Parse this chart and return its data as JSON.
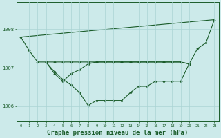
{
  "background_color": "#cceaea",
  "grid_color": "#aad4d4",
  "line_color": "#1a5c2a",
  "marker_color": "#1a5c2a",
  "xlabel": "Graphe pression niveau de la mer (hPa)",
  "xlabel_fontsize": 6.5,
  "ylabel_ticks": [
    1006,
    1007,
    1008
  ],
  "xlim": [
    -0.5,
    23.5
  ],
  "ylim": [
    1005.6,
    1008.7
  ],
  "x": [
    0,
    1,
    2,
    3,
    4,
    5,
    6,
    7,
    8,
    9,
    10,
    11,
    12,
    13,
    14,
    15,
    16,
    17,
    18,
    19,
    20,
    21,
    22,
    23
  ],
  "series1": [
    1007.8,
    1007.45,
    1007.15,
    1007.15,
    1006.9,
    1006.7,
    1006.55,
    1006.35,
    1006.02,
    1006.15,
    1006.15,
    1006.15,
    1006.15,
    1006.35,
    1006.52,
    1006.52,
    1006.65,
    1006.65,
    1006.65,
    1006.65,
    1007.1,
    1007.5,
    1007.65,
    1008.25
  ],
  "series2": [
    null,
    null,
    null,
    1007.15,
    1007.15,
    1007.15,
    1007.15,
    1007.15,
    1007.15,
    1007.15,
    1007.15,
    1007.15,
    1007.15,
    1007.15,
    1007.15,
    1007.15,
    1007.15,
    1007.15,
    1007.15,
    1007.15,
    1007.1,
    null,
    null,
    null
  ],
  "series3": [
    null,
    null,
    null,
    1007.15,
    1006.85,
    1006.65,
    1006.85,
    1006.95,
    1007.1,
    1007.15,
    1007.15,
    1007.15,
    1007.15,
    1007.15,
    1007.15,
    1007.15,
    1007.15,
    1007.15,
    1007.15,
    1007.15,
    1007.1,
    null,
    null,
    null
  ],
  "series4_x": [
    0,
    23
  ],
  "series4_y": [
    1007.8,
    1008.25
  ]
}
